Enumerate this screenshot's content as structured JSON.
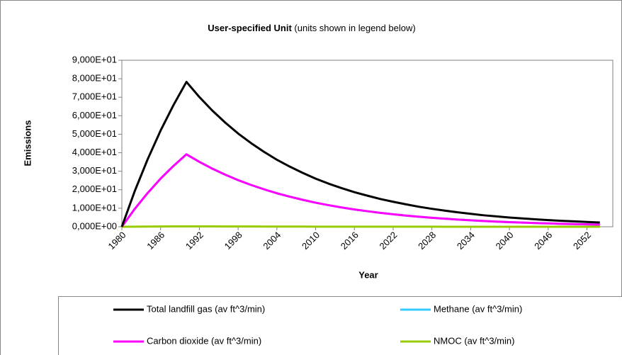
{
  "chart_data": {
    "type": "line",
    "title": "User-specified Unit",
    "subtitle": "(units shown in legend below)",
    "x_label": "Year",
    "y_label": "Emissions",
    "x": [
      1980,
      1982,
      1984,
      1986,
      1988,
      1990,
      1992,
      1994,
      1996,
      1998,
      2000,
      2002,
      2004,
      2006,
      2008,
      2010,
      2012,
      2014,
      2016,
      2018,
      2020,
      2022,
      2024,
      2026,
      2028,
      2030,
      2032,
      2034,
      2036,
      2038,
      2040,
      2042,
      2044,
      2046,
      2048,
      2050,
      2052,
      2054
    ],
    "xlim": [
      1980,
      2056
    ],
    "xticks": [
      1980,
      1986,
      1992,
      1998,
      2004,
      2010,
      2016,
      2022,
      2028,
      2034,
      2040,
      2046,
      2052
    ],
    "ylim": [
      0,
      90
    ],
    "yticks": [
      {
        "value": 0,
        "label": "0,000E+00"
      },
      {
        "value": 10,
        "label": "1,000E+01"
      },
      {
        "value": 20,
        "label": "2,000E+01"
      },
      {
        "value": 30,
        "label": "3,000E+01"
      },
      {
        "value": 40,
        "label": "4,000E+01"
      },
      {
        "value": 50,
        "label": "5,000E+01"
      },
      {
        "value": 60,
        "label": "6,000E+01"
      },
      {
        "value": 70,
        "label": "7,000E+01"
      },
      {
        "value": 80,
        "label": "8,000E+01"
      },
      {
        "value": 90,
        "label": "9,000E+01"
      }
    ],
    "grid": false,
    "legend": "bottom",
    "series": [
      {
        "name": "Total landfill gas (av ft^3/min)",
        "color": "#000000",
        "values": [
          0,
          19.3,
          36.5,
          52.0,
          65.8,
          78.3,
          70.1,
          62.8,
          56.3,
          50.4,
          45.2,
          40.5,
          36.2,
          32.5,
          29.1,
          26.0,
          23.3,
          20.9,
          18.7,
          16.8,
          15.0,
          13.5,
          12.1,
          10.8,
          9.7,
          8.7,
          7.8,
          7.0,
          6.2,
          5.6,
          5.0,
          4.5,
          4.0,
          3.6,
          3.2,
          2.9,
          2.6,
          2.3
        ]
      },
      {
        "name": "Methane (av ft^3/min)",
        "color": "#33ccff",
        "values": [
          0,
          9.65,
          18.25,
          26.0,
          32.9,
          39.15,
          35.05,
          31.4,
          28.15,
          25.2,
          22.6,
          20.25,
          18.1,
          16.25,
          14.55,
          13.0,
          11.65,
          10.45,
          9.35,
          8.4,
          7.5,
          6.75,
          6.05,
          5.4,
          4.85,
          4.35,
          3.9,
          3.5,
          3.1,
          2.8,
          2.5,
          2.25,
          2.0,
          1.8,
          1.6,
          1.45,
          1.3,
          1.15
        ]
      },
      {
        "name": "Carbon dioxide (av ft^3/min)",
        "color": "#ff00ff",
        "values": [
          0,
          9.65,
          18.25,
          26.0,
          32.9,
          39.15,
          35.05,
          31.4,
          28.15,
          25.2,
          22.6,
          20.25,
          18.1,
          16.25,
          14.55,
          13.0,
          11.65,
          10.45,
          9.35,
          8.4,
          7.5,
          6.75,
          6.05,
          5.4,
          4.85,
          4.35,
          3.9,
          3.5,
          3.1,
          2.8,
          2.5,
          2.25,
          2.0,
          1.8,
          1.6,
          1.45,
          1.3,
          1.15
        ]
      },
      {
        "name": "NMOC (av ft^3/min)",
        "color": "#99cc00",
        "values": [
          0,
          0.05,
          0.1,
          0.14,
          0.18,
          0.21,
          0.19,
          0.17,
          0.15,
          0.14,
          0.12,
          0.11,
          0.1,
          0.09,
          0.08,
          0.07,
          0.06,
          0.06,
          0.05,
          0.05,
          0.04,
          0.04,
          0.03,
          0.03,
          0.03,
          0.02,
          0.02,
          0.02,
          0.02,
          0.02,
          0.01,
          0.01,
          0.01,
          0.01,
          0.01,
          0.01,
          0.01,
          0.01
        ]
      }
    ]
  }
}
